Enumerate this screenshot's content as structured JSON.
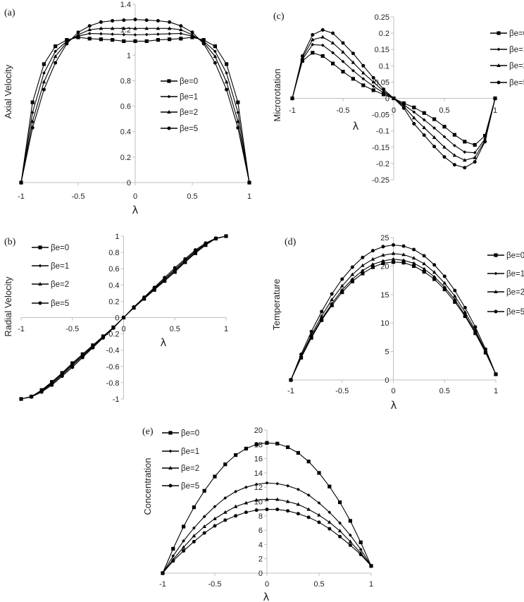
{
  "chart_data": [
    {
      "type": "line",
      "panel_label": "(a)",
      "xlabel": "λ",
      "ylabel": "Axial Velocity",
      "xlim": [
        -1,
        1
      ],
      "ylim": [
        0,
        1.4
      ],
      "xticks": [
        "-1",
        "-0.5",
        "0",
        "0.5",
        "1"
      ],
      "yticks": [
        "0",
        "0.2",
        "0.4",
        "0.6",
        "0.8",
        "1",
        "1.2",
        "1.4"
      ],
      "legend_position": "center-right",
      "x": [
        -1,
        -0.9,
        -0.8,
        -0.7,
        -0.6,
        -0.5,
        -0.4,
        -0.3,
        -0.2,
        -0.1,
        0,
        0.1,
        0.2,
        0.3,
        0.4,
        0.5,
        0.6,
        0.7,
        0.8,
        0.9,
        1
      ],
      "series": [
        {
          "name": "βe=0",
          "marker": "square",
          "values": [
            0,
            0.63,
            0.93,
            1.07,
            1.12,
            1.14,
            1.13,
            1.125,
            1.12,
            1.11,
            1.11,
            1.11,
            1.12,
            1.125,
            1.13,
            1.14,
            1.12,
            1.07,
            0.93,
            0.63,
            0
          ]
        },
        {
          "name": "βe=1",
          "marker": "diamond",
          "values": [
            0,
            0.55,
            0.86,
            1.03,
            1.11,
            1.15,
            1.17,
            1.168,
            1.165,
            1.162,
            1.16,
            1.162,
            1.165,
            1.168,
            1.17,
            1.15,
            1.11,
            1.03,
            0.86,
            0.55,
            0
          ]
        },
        {
          "name": "βe=2",
          "marker": "triangle",
          "values": [
            0,
            0.48,
            0.79,
            0.99,
            1.1,
            1.16,
            1.2,
            1.21,
            1.21,
            1.21,
            1.21,
            1.21,
            1.21,
            1.21,
            1.2,
            1.16,
            1.1,
            0.99,
            0.79,
            0.48,
            0
          ]
        },
        {
          "name": "βe=5",
          "marker": "circle",
          "values": [
            0,
            0.43,
            0.73,
            0.94,
            1.09,
            1.18,
            1.23,
            1.26,
            1.27,
            1.275,
            1.28,
            1.275,
            1.27,
            1.26,
            1.23,
            1.18,
            1.09,
            0.94,
            0.73,
            0.43,
            0
          ]
        }
      ]
    },
    {
      "type": "line",
      "panel_label": "(b)",
      "xlabel": "λ",
      "ylabel": "Radial Velocity",
      "xlim": [
        -1,
        1
      ],
      "ylim": [
        -1,
        1
      ],
      "xticks": [
        "-1",
        "-0.5",
        "0",
        "0.5",
        "1"
      ],
      "yticks": [
        "-1",
        "-0.8",
        "-0.6",
        "-0.4",
        "-0.2",
        "0",
        "0.2",
        "0.4",
        "0.6",
        "0.8",
        "1"
      ],
      "legend_position": "top-left",
      "x": [
        -1,
        -0.9,
        -0.8,
        -0.7,
        -0.6,
        -0.5,
        -0.4,
        -0.3,
        -0.2,
        -0.1,
        0,
        0.1,
        0.2,
        0.3,
        0.4,
        0.5,
        0.6,
        0.7,
        0.8,
        0.9,
        1
      ],
      "series": [
        {
          "name": "βe=0",
          "marker": "square",
          "values": [
            -1,
            -0.97,
            -0.89,
            -0.79,
            -0.68,
            -0.56,
            -0.45,
            -0.34,
            -0.23,
            -0.12,
            0,
            0.12,
            0.23,
            0.34,
            0.45,
            0.56,
            0.68,
            0.79,
            0.89,
            0.97,
            1
          ]
        },
        {
          "name": "βe=1",
          "marker": "diamond",
          "values": [
            -1,
            -0.97,
            -0.9,
            -0.8,
            -0.69,
            -0.575,
            -0.46,
            -0.35,
            -0.235,
            -0.12,
            0,
            0.12,
            0.235,
            0.35,
            0.46,
            0.575,
            0.69,
            0.8,
            0.9,
            0.97,
            1
          ]
        },
        {
          "name": "βe=2",
          "marker": "triangle",
          "values": [
            -1,
            -0.97,
            -0.905,
            -0.815,
            -0.705,
            -0.59,
            -0.475,
            -0.36,
            -0.24,
            -0.125,
            0,
            0.125,
            0.24,
            0.36,
            0.475,
            0.59,
            0.705,
            0.815,
            0.905,
            0.97,
            1
          ]
        },
        {
          "name": "βe=5",
          "marker": "circle",
          "values": [
            -1,
            -0.975,
            -0.915,
            -0.83,
            -0.72,
            -0.61,
            -0.49,
            -0.37,
            -0.25,
            -0.13,
            0,
            0.13,
            0.25,
            0.37,
            0.49,
            0.61,
            0.72,
            0.83,
            0.915,
            0.975,
            1
          ]
        }
      ]
    },
    {
      "type": "line",
      "panel_label": "(c)",
      "xlabel": "λ",
      "ylabel": "Microrotation",
      "xlim": [
        -1,
        1
      ],
      "ylim": [
        -0.25,
        0.25
      ],
      "xticks": [
        "-1",
        "-0.5",
        "0",
        "0.5",
        "1"
      ],
      "yticks": [
        "-0.25",
        "-0.2",
        "-0.15",
        "-0.1",
        "-0.05",
        "0",
        "0.05",
        "0.1",
        "0.15",
        "0.2",
        "0.25"
      ],
      "legend_position": "right",
      "x": [
        -1,
        -0.9,
        -0.8,
        -0.7,
        -0.6,
        -0.5,
        -0.4,
        -0.3,
        -0.2,
        -0.1,
        0,
        0.1,
        0.2,
        0.3,
        0.4,
        0.5,
        0.6,
        0.7,
        0.8,
        0.9,
        1
      ],
      "series": [
        {
          "name": "βe=0",
          "marker": "square",
          "values": [
            0,
            0.115,
            0.14,
            0.13,
            0.107,
            0.082,
            0.06,
            0.04,
            0.025,
            0.012,
            0,
            -0.015,
            -0.028,
            -0.045,
            -0.064,
            -0.087,
            -0.112,
            -0.133,
            -0.143,
            -0.115,
            0
          ]
        },
        {
          "name": "βe=1",
          "marker": "diamond",
          "values": [
            0,
            0.12,
            0.165,
            0.163,
            0.14,
            0.113,
            0.085,
            0.06,
            0.037,
            0.017,
            0,
            -0.02,
            -0.042,
            -0.066,
            -0.091,
            -0.118,
            -0.145,
            -0.165,
            -0.167,
            -0.125,
            0
          ]
        },
        {
          "name": "βe=2",
          "marker": "triangle",
          "values": [
            0,
            0.125,
            0.18,
            0.188,
            0.17,
            0.142,
            0.11,
            0.078,
            0.05,
            0.022,
            0,
            -0.025,
            -0.06,
            -0.09,
            -0.12,
            -0.15,
            -0.175,
            -0.19,
            -0.182,
            -0.13,
            0
          ]
        },
        {
          "name": "βe=5",
          "marker": "circle",
          "values": [
            0,
            0.13,
            0.195,
            0.21,
            0.2,
            0.17,
            0.138,
            0.1,
            0.063,
            0.028,
            0,
            -0.03,
            -0.078,
            -0.113,
            -0.148,
            -0.18,
            -0.204,
            -0.213,
            -0.195,
            -0.133,
            0
          ]
        }
      ]
    },
    {
      "type": "line",
      "panel_label": "(d)",
      "xlabel": "λ",
      "ylabel": "Temperature",
      "xlim": [
        -1,
        1
      ],
      "ylim": [
        0,
        25
      ],
      "xticks": [
        "-1",
        "-0.5",
        "0",
        "0.5",
        "1"
      ],
      "yticks": [
        "0",
        "5",
        "10",
        "15",
        "20",
        "25"
      ],
      "legend_position": "right",
      "x": [
        -1,
        -0.9,
        -0.8,
        -0.7,
        -0.6,
        -0.5,
        -0.4,
        -0.3,
        -0.2,
        -0.1,
        0,
        0.1,
        0.2,
        0.3,
        0.4,
        0.5,
        0.6,
        0.7,
        0.8,
        0.9,
        1
      ],
      "series": [
        {
          "name": "βe=0",
          "marker": "square",
          "values": [
            0,
            3.9,
            7.4,
            10.5,
            13.1,
            15.4,
            17.3,
            18.7,
            19.8,
            20.5,
            20.7,
            20.6,
            20.0,
            19.0,
            17.7,
            15.9,
            13.7,
            11.2,
            8.2,
            4.8,
            1
          ]
        },
        {
          "name": "βe=1",
          "marker": "diamond",
          "values": [
            0,
            4.0,
            7.6,
            10.7,
            13.4,
            15.8,
            17.7,
            19.2,
            20.3,
            20.9,
            21.2,
            21.0,
            20.5,
            19.5,
            18.1,
            16.3,
            14.1,
            11.4,
            8.4,
            4.9,
            1
          ]
        },
        {
          "name": "βe=2",
          "marker": "triangle",
          "values": [
            0,
            4.2,
            7.9,
            11.2,
            14.1,
            16.5,
            18.5,
            20.1,
            21.2,
            21.9,
            22.2,
            22.0,
            21.4,
            20.4,
            18.9,
            17.0,
            14.7,
            11.9,
            8.7,
            5.1,
            1
          ]
        },
        {
          "name": "βe=5",
          "marker": "circle",
          "values": [
            0,
            4.5,
            8.5,
            12.0,
            15.1,
            17.7,
            19.8,
            21.5,
            22.7,
            23.4,
            23.7,
            23.5,
            22.9,
            21.8,
            20.2,
            18.2,
            15.7,
            12.7,
            9.3,
            5.4,
            1
          ]
        }
      ]
    },
    {
      "type": "line",
      "panel_label": "(e)",
      "xlabel": "λ",
      "ylabel": "Concentration",
      "xlim": [
        -1,
        1
      ],
      "ylim": [
        0,
        20
      ],
      "xticks": [
        "-1",
        "-0.5",
        "0",
        "0.5",
        "1"
      ],
      "yticks": [
        "0",
        "2",
        "4",
        "6",
        "8",
        "10",
        "12",
        "14",
        "16",
        "18",
        "20"
      ],
      "legend_position": "top-left",
      "x": [
        -1,
        -0.9,
        -0.8,
        -0.7,
        -0.6,
        -0.5,
        -0.4,
        -0.3,
        -0.2,
        -0.1,
        0,
        0.1,
        0.2,
        0.3,
        0.4,
        0.5,
        0.6,
        0.7,
        0.8,
        0.9,
        1
      ],
      "series": [
        {
          "name": "βe=0",
          "marker": "square",
          "values": [
            0,
            3.4,
            6.5,
            9.2,
            11.5,
            13.5,
            15.2,
            16.5,
            17.4,
            18.0,
            18.2,
            18.1,
            17.6,
            16.8,
            15.6,
            14.0,
            12.1,
            9.9,
            7.3,
            4.3,
            1
          ]
        },
        {
          "name": "βe=1",
          "marker": "diamond",
          "values": [
            0,
            2.4,
            4.5,
            6.3,
            7.9,
            9.3,
            10.5,
            11.4,
            12.0,
            12.4,
            12.6,
            12.5,
            12.2,
            11.7,
            10.9,
            9.8,
            8.5,
            7.0,
            5.3,
            3.3,
            1
          ]
        },
        {
          "name": "βe=2",
          "marker": "triangle",
          "values": [
            0,
            1.9,
            3.6,
            5.2,
            6.5,
            7.6,
            8.5,
            9.3,
            9.8,
            10.2,
            10.3,
            10.3,
            10.0,
            9.6,
            8.9,
            8.1,
            7.1,
            5.9,
            4.4,
            2.8,
            1
          ]
        },
        {
          "name": "βe=5",
          "marker": "circle",
          "values": [
            0,
            1.7,
            3.1,
            4.4,
            5.6,
            6.6,
            7.4,
            8.0,
            8.5,
            8.8,
            8.9,
            8.9,
            8.7,
            8.3,
            7.8,
            7.1,
            6.2,
            5.1,
            3.9,
            2.6,
            1
          ]
        }
      ]
    }
  ],
  "colors": {
    "line": "#000000",
    "axis": "#bfbfbf",
    "text": "#222222"
  }
}
